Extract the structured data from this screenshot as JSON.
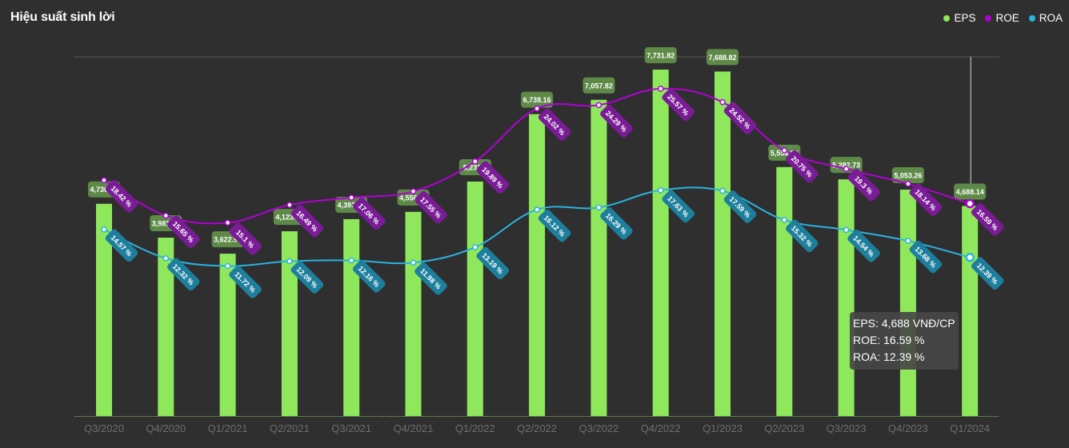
{
  "header": {
    "title": "Hiệu suất sinh lời"
  },
  "legend": [
    {
      "label": "EPS",
      "color": "#8fe85c"
    },
    {
      "label": "ROE",
      "color": "#b200d6"
    },
    {
      "label": "ROA",
      "color": "#2ab3df"
    }
  ],
  "tooltip": {
    "eps_line": "EPS: 4,688 VNĐ/CP",
    "roe_line": "ROE: 16.59 %",
    "roa_line": "ROA: 12.39 %"
  },
  "chart_data": {
    "type": "bar",
    "categories": [
      "Q3/2020",
      "Q4/2020",
      "Q1/2021",
      "Q2/2021",
      "Q3/2021",
      "Q4/2021",
      "Q1/2022",
      "Q2/2022",
      "Q3/2022",
      "Q4/2022",
      "Q1/2023",
      "Q2/2023",
      "Q3/2023",
      "Q4/2023",
      "Q1/2024"
    ],
    "series": [
      {
        "name": "EPS",
        "kind": "bar",
        "color": "#8fe85c",
        "label_bg": "#5e8a48",
        "values": [
          4736.68,
          3981.05,
          3622.99,
          4123.43,
          4393.81,
          4556.45,
          5232.4,
          6738.16,
          7057.82,
          7731.82,
          7688.82,
          5556.84,
          5282.73,
          5053.26,
          4688.14
        ],
        "labels": [
          "4,736.68",
          "3,981.05",
          "3,622.99",
          "4,123.43",
          "4,393.81",
          "4,556.45",
          "5,232.4",
          "6,738.16",
          "7,057.82",
          "7,731.82",
          "7,688.82",
          "5,556.84",
          "5,282.73",
          "5,053.26",
          "4,688.14"
        ]
      },
      {
        "name": "ROE",
        "kind": "line",
        "color": "#b200d6",
        "label_bg": "#7a1c96",
        "values": [
          18.42,
          15.65,
          15.1,
          16.49,
          17.06,
          17.55,
          19.89,
          24.02,
          24.29,
          25.57,
          24.52,
          20.75,
          19.3,
          18.14,
          16.59
        ],
        "labels": [
          "18.42 %",
          "15.65 %",
          "15.1 %",
          "16.49 %",
          "17.06 %",
          "17.55 %",
          "19.89 %",
          "24.02 %",
          "24.29 %",
          "25.57 %",
          "24.52 %",
          "20.75 %",
          "19.3 %",
          "18.14 %",
          "16.59 %"
        ]
      },
      {
        "name": "ROA",
        "kind": "line",
        "color": "#2ab3df",
        "label_bg": "#1e7f9c",
        "values": [
          14.57,
          12.32,
          11.72,
          12.09,
          12.16,
          11.98,
          13.19,
          16.12,
          16.29,
          17.63,
          17.59,
          15.32,
          14.54,
          13.68,
          12.39
        ],
        "labels": [
          "14.57 %",
          "12.32 %",
          "11.72 %",
          "12.09 %",
          "12.16 %",
          "11.98 %",
          "13.19 %",
          "16.12 %",
          "16.29 %",
          "17.63 %",
          "17.59 %",
          "15.32 %",
          "14.54 %",
          "13.68 %",
          "12.39 %"
        ]
      }
    ],
    "eps_ylim": [
      0,
      8000
    ],
    "pct_ylim": [
      0,
      29
    ],
    "hover_index": 14,
    "grid": true
  }
}
